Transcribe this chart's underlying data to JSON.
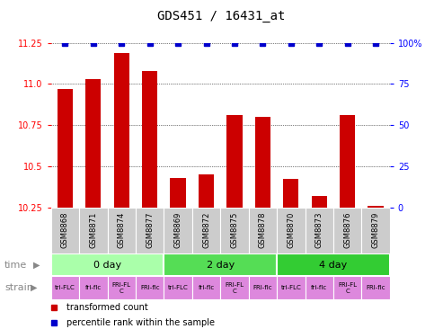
{
  "title": "GDS451 / 16431_at",
  "samples": [
    "GSM8868",
    "GSM8871",
    "GSM8874",
    "GSM8877",
    "GSM8869",
    "GSM8872",
    "GSM8875",
    "GSM8878",
    "GSM8870",
    "GSM8873",
    "GSM8876",
    "GSM8879"
  ],
  "bar_values": [
    10.97,
    11.03,
    11.19,
    11.08,
    10.43,
    10.45,
    10.81,
    10.8,
    10.42,
    10.32,
    10.81,
    10.26
  ],
  "percentile_values": [
    100,
    100,
    100,
    100,
    100,
    100,
    100,
    100,
    100,
    100,
    100,
    100
  ],
  "ylim": [
    10.25,
    11.25
  ],
  "y_ticks": [
    10.25,
    10.5,
    10.75,
    11.0,
    11.25
  ],
  "y_right_ticks": [
    0,
    25,
    50,
    75,
    100
  ],
  "y_right_labels": [
    "0",
    "25",
    "50",
    "75",
    "100%"
  ],
  "bar_color": "#cc0000",
  "percentile_color": "#0000cc",
  "bar_baseline": 10.25,
  "time_groups": [
    {
      "label": "0 day",
      "start": 0,
      "end": 4,
      "color": "#aaffaa"
    },
    {
      "label": "2 day",
      "start": 4,
      "end": 8,
      "color": "#55dd55"
    },
    {
      "label": "4 day",
      "start": 8,
      "end": 12,
      "color": "#33cc33"
    }
  ],
  "strain_labels": [
    "tri-FLC",
    "fri-flc",
    "FRI-FL\nC",
    "FRI-flc",
    "tri-FLC",
    "fri-flc",
    "FRI-FL\nC",
    "FRI-flc",
    "tri-FLC",
    "fri-flc",
    "FRI-FL\nC",
    "FRI-flc"
  ],
  "sample_bg_color": "#cccccc",
  "legend_red_label": "transformed count",
  "legend_blue_label": "percentile rank within the sample",
  "pink": "#dd88dd",
  "title_fontsize": 10,
  "bar_fontsize": 6,
  "tick_fontsize": 7,
  "time_fontsize": 8,
  "strain_fontsize": 5,
  "legend_fontsize": 7
}
